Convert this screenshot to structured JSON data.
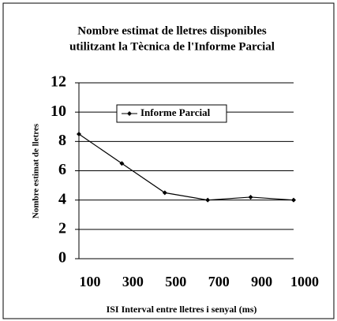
{
  "chart_data": {
    "type": "line",
    "title": [
      "Nombre estimat de lletres disponibles",
      "utilitzant la Tècnica de l'Informe Parcial"
    ],
    "x_label": "ISI Interval entre lletres i senyal (ms)",
    "y_label": "Nombre estimat de lletres",
    "categories": [
      "100",
      "300",
      "500",
      "700",
      "900",
      "1000"
    ],
    "series": [
      {
        "name": "Informe Parcial",
        "color": "#000000",
        "values": [
          8.5,
          6.5,
          4.5,
          4.0,
          4.2,
          4.0
        ]
      }
    ],
    "ylim": [
      0,
      12
    ],
    "yticks": [
      0,
      2,
      4,
      6,
      8,
      10,
      12
    ],
    "grid": true,
    "legend": "upper left"
  }
}
